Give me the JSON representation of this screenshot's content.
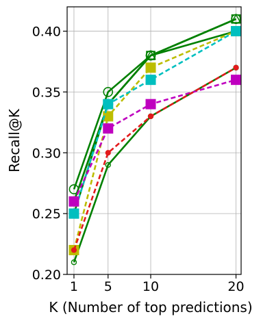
{
  "chart_data": {
    "type": "line",
    "title": "",
    "xlabel": "K (Number of top predictions)",
    "ylabel": "Recall@K",
    "x": [
      1,
      5,
      10,
      20
    ],
    "xlim": [
      0.2,
      20.6
    ],
    "ylim": [
      0.2,
      0.42
    ],
    "xticks": [
      1,
      5,
      10,
      20
    ],
    "yticks": [
      0.2,
      0.25,
      0.3,
      0.35,
      0.4
    ],
    "ytick_labels": [
      "0.20",
      "0.25",
      "0.30",
      "0.35",
      "0.40"
    ],
    "grid": true,
    "series": [
      {
        "color": "#008000",
        "line": "solid",
        "marker": "circle-open",
        "size": "large",
        "values": [
          0.27,
          0.35,
          0.38,
          0.41
        ]
      },
      {
        "color": "#008000",
        "line": "solid",
        "marker": "square-open",
        "size": "large",
        "values": [
          0.26,
          0.34,
          0.38,
          0.41
        ]
      },
      {
        "color": "#008000",
        "line": "solid",
        "marker": "triangle-open",
        "size": "large",
        "values": [
          0.25,
          0.34,
          0.38,
          0.41
        ]
      },
      {
        "color": "#008000",
        "line": "solid",
        "marker": "circle-open",
        "size": "large",
        "values": [
          0.26,
          0.34,
          0.38,
          0.4
        ]
      },
      {
        "color": "#008000",
        "line": "solid",
        "marker": "circle-open",
        "size": "small",
        "values": [
          0.21,
          0.29,
          0.33,
          0.37
        ]
      },
      {
        "color": "#bcbd00",
        "line": "dashed",
        "marker": "square",
        "size": "large",
        "values": [
          0.22,
          0.33,
          0.37,
          0.4
        ]
      },
      {
        "color": "#00bfbf",
        "line": "dashed",
        "marker": "square",
        "size": "large",
        "values": [
          0.25,
          0.34,
          0.36,
          0.4
        ]
      },
      {
        "color": "#00bfbf",
        "line": "none",
        "marker": "circle",
        "size": "large",
        "values": [
          null,
          0.34,
          0.36,
          0.4
        ]
      },
      {
        "color": "#bf00bf",
        "line": "dashed",
        "marker": "square",
        "size": "large",
        "values": [
          0.26,
          0.32,
          0.34,
          0.36
        ]
      },
      {
        "color": "#e31a1c",
        "line": "dashed",
        "marker": "circle",
        "size": "small",
        "values": [
          0.22,
          0.3,
          0.33,
          0.37
        ]
      }
    ]
  }
}
